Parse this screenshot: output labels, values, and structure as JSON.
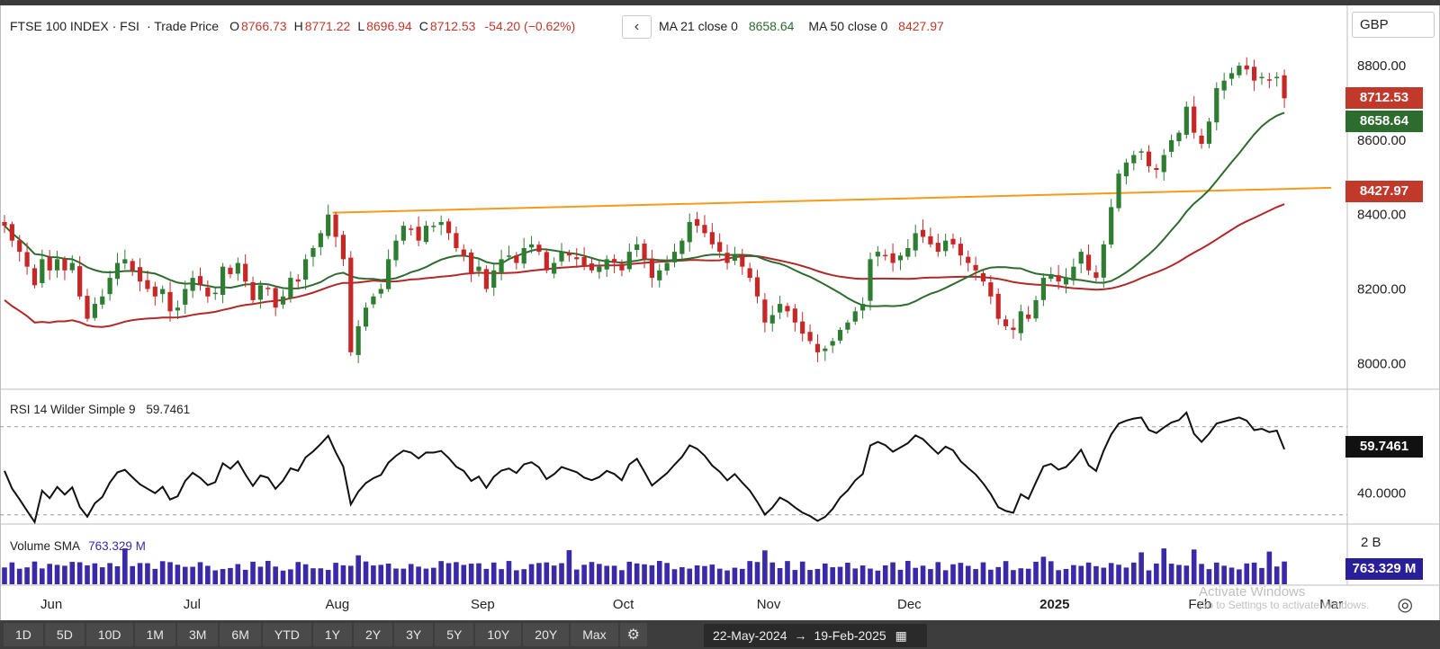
{
  "header": {
    "symbol": "FTSE 100 INDEX · FSI",
    "price_type": "· Trade Price",
    "open_label": "O",
    "open": "8766.73",
    "high_label": "H",
    "high": "8771.22",
    "low_label": "L",
    "low": "8696.94",
    "close_label": "C",
    "close": "8712.53",
    "change": "-54.20 (−0.62%)",
    "ma21_label": "MA 21 close 0",
    "ma21_value": "8658.64",
    "ma50_label": "MA 50 close 0",
    "ma50_value": "8427.97",
    "back_icon": "chevron-left-icon"
  },
  "currency": "GBP",
  "rsi_label": "RSI 14 Wilder Simple 9",
  "rsi_value_text": "59.7461",
  "volume_label": "Volume SMA",
  "volume_value_text": "763.329 M",
  "tags": {
    "last_price": "8712.53",
    "ma21": "8658.64",
    "ma50": "8427.97",
    "rsi": "59.7461",
    "volume": "763.329 M"
  },
  "colors": {
    "up": "#2e7d32",
    "down": "#c62828",
    "ma21": "#2e6b2e",
    "ma50": "#b22828",
    "trendline": "#f59a1b",
    "volume": "#3a2aa8",
    "rsi_line": "#111111"
  },
  "toolbar": {
    "ranges": [
      "1D",
      "5D",
      "10D",
      "1M",
      "3M",
      "6M",
      "YTD",
      "1Y",
      "2Y",
      "3Y",
      "5Y",
      "10Y",
      "20Y",
      "Max"
    ],
    "gear_icon": "gear-icon",
    "start_date": "22-May-2024",
    "end_date": "19-Feb-2025",
    "calendar_icon": "calendar-icon"
  },
  "watermark": {
    "line1": "Activate Windows",
    "line2": "Go to Settings to activate Windows."
  },
  "chart_data": [
    {
      "type": "candlestick",
      "title": "FTSE 100 INDEX · FSI",
      "y_ticks": [
        "8800.00",
        "8600.00",
        "8400.00",
        "8200.00",
        "8000.00"
      ],
      "ylim": [
        7950,
        8880
      ],
      "x_ticks": [
        "Jun",
        "Jul",
        "Aug",
        "Sep",
        "Oct",
        "Nov",
        "Dec",
        "2025",
        "Feb",
        "Mar"
      ],
      "x_tick_dates": [
        "2024-06-01",
        "2024-07-01",
        "2024-08-01",
        "2024-09-01",
        "2024-10-01",
        "2024-11-01",
        "2024-12-01",
        "2025-01-01",
        "2025-02-01",
        "2025-03-01"
      ],
      "date_range": [
        "2024-05-22",
        "2025-02-19"
      ],
      "x_domain": [
        "2024-05-22",
        "2025-03-05"
      ],
      "closes": [
        8370,
        8330,
        8300,
        8260,
        8210,
        8280,
        8250,
        8280,
        8250,
        8270,
        8180,
        8120,
        8160,
        8180,
        8230,
        8270,
        8280,
        8250,
        8220,
        8200,
        8180,
        8200,
        8140,
        8150,
        8200,
        8230,
        8210,
        8180,
        8190,
        8260,
        8240,
        8270,
        8220,
        8170,
        8210,
        8200,
        8150,
        8180,
        8230,
        8220,
        8280,
        8310,
        8350,
        8400,
        8340,
        8280,
        8030,
        8100,
        8150,
        8180,
        8200,
        8280,
        8330,
        8370,
        8360,
        8330,
        8370,
        8370,
        8380,
        8350,
        8310,
        8290,
        8240,
        8260,
        8200,
        8250,
        8280,
        8290,
        8270,
        8310,
        8320,
        8300,
        8250,
        8270,
        8300,
        8290,
        8280,
        8260,
        8250,
        8260,
        8280,
        8270,
        8250,
        8300,
        8320,
        8280,
        8230,
        8250,
        8270,
        8300,
        8330,
        8380,
        8370,
        8350,
        8320,
        8300,
        8270,
        8290,
        8260,
        8230,
        8180,
        8110,
        8130,
        8160,
        8140,
        8110,
        8080,
        8060,
        8030,
        8040,
        8060,
        8090,
        8110,
        8140,
        8160,
        8280,
        8300,
        8290,
        8270,
        8290,
        8310,
        8350,
        8340,
        8320,
        8300,
        8330,
        8320,
        8290,
        8270,
        8250,
        8220,
        8180,
        8120,
        8100,
        8090,
        8140,
        8120,
        8170,
        8230,
        8240,
        8220,
        8230,
        8260,
        8300,
        8250,
        8230,
        8320,
        8420,
        8510,
        8540,
        8560,
        8570,
        8530,
        8520,
        8560,
        8600,
        8620,
        8690,
        8620,
        8590,
        8650,
        8740,
        8760,
        8780,
        8800,
        8790,
        8760,
        8770,
        8760,
        8770,
        8712.53
      ],
      "series": [
        {
          "name": "MA 21 close 0",
          "last": 8658.64
        },
        {
          "name": "MA 50 close 0",
          "last": 8427.97
        }
      ],
      "trendline": {
        "from": [
          "2024-07-31",
          8405
        ],
        "to": [
          "2025-03-01",
          8472
        ]
      }
    },
    {
      "type": "line",
      "title": "RSI 14 Wilder Simple 9",
      "y_ticks": [
        "40.0000"
      ],
      "ylim": [
        25,
        85
      ],
      "guides": [
        30,
        70
      ],
      "last": 59.7461
    },
    {
      "type": "bar",
      "title": "Volume SMA",
      "y_ticks": [
        "2 B"
      ],
      "unit": "M",
      "last": 763.329
    }
  ]
}
